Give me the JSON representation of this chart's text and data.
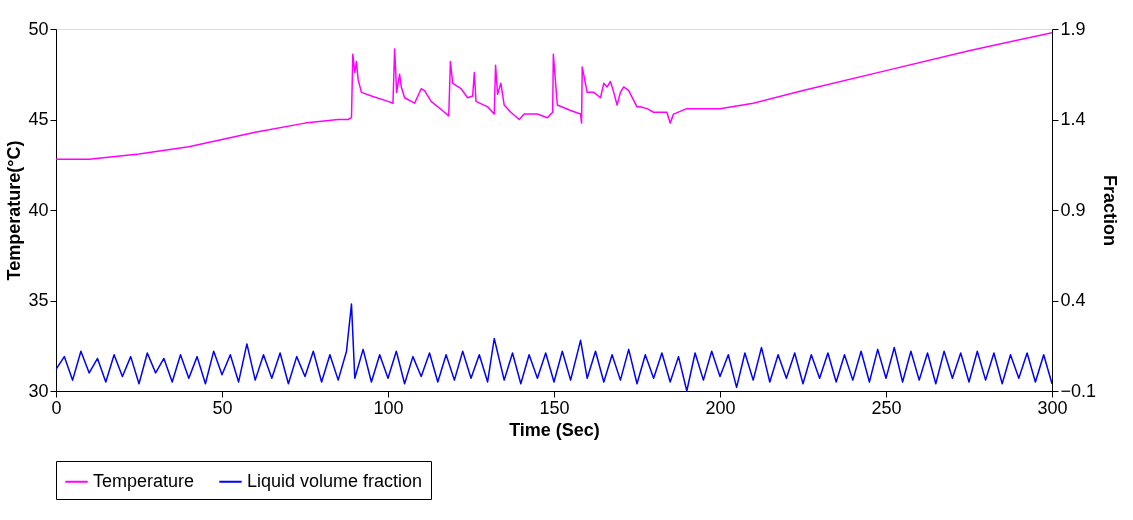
{
  "chart_data": {
    "type": "line",
    "xlabel": "Time (Sec)",
    "ylabel": "Temperature(°C)",
    "y2label": "Fraction",
    "xlim": [
      0,
      300
    ],
    "xticks": [
      0,
      50,
      100,
      150,
      200,
      250,
      300
    ],
    "ylim": [
      30,
      50
    ],
    "yticks": [
      30,
      35,
      40,
      45,
      50
    ],
    "y2lim": [
      -0.1,
      1.9
    ],
    "y2ticks": [
      -0.1,
      0.4,
      0.9,
      1.4,
      1.9
    ],
    "grid": false,
    "legend": "bottom",
    "marker": "none",
    "line_style": "solid",
    "series": [
      {
        "name": "Temperature",
        "color": "#ff00ff",
        "x": [
          0,
          10,
          25,
          40,
          60,
          75,
          85,
          88,
          89,
          89.4,
          90,
          90.5,
          91,
          92,
          95,
          100,
          101.5,
          102,
          102.6,
          103.5,
          104,
          105,
          108,
          110,
          111,
          113,
          117,
          118.3,
          118.8,
          119.5,
          122,
          124,
          125.5,
          126,
          126.5,
          130,
          132,
          132.4,
          133,
          134,
          135,
          137,
          139.5,
          141,
          145,
          148,
          149.6,
          149.8,
          151,
          155,
          158,
          158.3,
          158.5,
          160,
          162,
          164,
          165,
          166,
          167,
          168,
          169,
          170,
          171,
          172.5,
          175,
          176,
          178,
          180,
          184,
          185,
          186,
          190,
          200,
          210,
          225,
          250,
          275,
          300
        ],
        "values": [
          42.8,
          42.8,
          43.1,
          43.5,
          44.3,
          44.8,
          45.0,
          45.0,
          45.1,
          48.6,
          47.6,
          48.2,
          47.2,
          46.5,
          46.3,
          46.0,
          45.9,
          48.9,
          46.5,
          47.5,
          46.8,
          46.2,
          45.9,
          46.7,
          46.6,
          46.0,
          45.4,
          45.2,
          48.2,
          47.0,
          46.7,
          46.2,
          46.3,
          47.6,
          46.0,
          45.7,
          45.3,
          48.0,
          46.4,
          47.0,
          45.8,
          45.4,
          45.0,
          45.3,
          45.3,
          45.1,
          45.4,
          48.6,
          45.8,
          45.5,
          45.3,
          44.8,
          47.9,
          46.5,
          46.5,
          46.2,
          47.0,
          46.8,
          47.1,
          46.5,
          45.8,
          46.5,
          46.8,
          46.6,
          45.7,
          45.7,
          45.6,
          45.4,
          45.4,
          44.8,
          45.3,
          45.6,
          45.6,
          45.9,
          46.6,
          47.7,
          48.8,
          49.8
        ]
      },
      {
        "name": "Liquid volume fraction",
        "color": "#0000ff",
        "axis": "y2",
        "x": [
          0,
          2.5,
          5,
          7.5,
          10,
          12.5,
          15,
          17.5,
          20,
          22.5,
          25,
          27.5,
          30,
          32.5,
          35,
          37.5,
          40,
          42.5,
          45,
          47.5,
          50,
          52.5,
          55,
          57.5,
          60,
          62.5,
          65,
          67.5,
          70,
          72.5,
          75,
          77.5,
          80,
          82.5,
          85,
          87.5,
          89,
          90,
          92.5,
          95,
          97.5,
          100,
          102.5,
          105,
          107.5,
          110,
          112.5,
          115,
          117.5,
          120,
          122.5,
          125,
          127.5,
          130,
          132,
          135,
          137.5,
          140,
          142.5,
          145,
          147.5,
          150,
          152.5,
          155,
          158,
          160,
          162.5,
          165,
          167.5,
          170,
          172.5,
          175,
          177.5,
          180,
          182.5,
          185,
          187.5,
          190,
          192.5,
          195,
          197.5,
          200,
          202.5,
          205,
          207.5,
          210,
          212.5,
          215,
          217.5,
          220,
          222.5,
          225,
          227.5,
          230,
          232.5,
          235,
          237.5,
          240,
          242.5,
          245,
          247.5,
          250,
          252.5,
          255,
          257.5,
          260,
          262.5,
          265,
          267.5,
          270,
          272.5,
          275,
          277.5,
          280,
          282.5,
          285,
          287.5,
          290,
          292.5,
          295,
          297.5,
          300
        ],
        "values": [
          0.02,
          0.09,
          -0.04,
          0.12,
          0.0,
          0.08,
          -0.05,
          0.1,
          -0.02,
          0.09,
          -0.06,
          0.11,
          0.0,
          0.08,
          -0.05,
          0.1,
          -0.03,
          0.09,
          -0.06,
          0.12,
          -0.01,
          0.1,
          -0.05,
          0.16,
          -0.04,
          0.1,
          -0.03,
          0.11,
          -0.06,
          0.09,
          -0.02,
          0.12,
          -0.05,
          0.1,
          -0.04,
          0.12,
          0.38,
          -0.03,
          0.13,
          -0.05,
          0.1,
          -0.03,
          0.12,
          -0.06,
          0.09,
          -0.02,
          0.11,
          -0.05,
          0.1,
          -0.04,
          0.12,
          -0.03,
          0.1,
          -0.05,
          0.19,
          -0.04,
          0.11,
          -0.06,
          0.1,
          -0.03,
          0.11,
          -0.05,
          0.12,
          -0.04,
          0.18,
          -0.03,
          0.12,
          -0.05,
          0.1,
          -0.04,
          0.13,
          -0.06,
          0.1,
          -0.03,
          0.11,
          -0.05,
          0.09,
          -0.1,
          0.11,
          -0.04,
          0.12,
          -0.02,
          0.1,
          -0.08,
          0.11,
          -0.04,
          0.14,
          -0.05,
          0.1,
          -0.03,
          0.11,
          -0.06,
          0.1,
          -0.03,
          0.11,
          -0.05,
          0.1,
          -0.04,
          0.12,
          -0.05,
          0.13,
          -0.03,
          0.14,
          -0.05,
          0.12,
          -0.04,
          0.11,
          -0.06,
          0.12,
          -0.03,
          0.11,
          -0.05,
          0.12,
          -0.04,
          0.11,
          -0.06,
          0.1,
          -0.03,
          0.11,
          -0.05,
          0.1,
          -0.06
        ]
      }
    ]
  }
}
